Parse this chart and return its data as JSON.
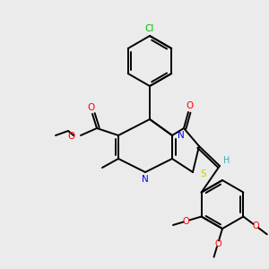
{
  "bg_color": "#ebebeb",
  "bond_color": "#000000",
  "colors": {
    "N": "#0000ff",
    "O": "#ff0000",
    "S": "#cccc00",
    "Cl": "#00bb00",
    "C": "#000000",
    "H": "#44aaaa"
  },
  "lw": 1.4
}
